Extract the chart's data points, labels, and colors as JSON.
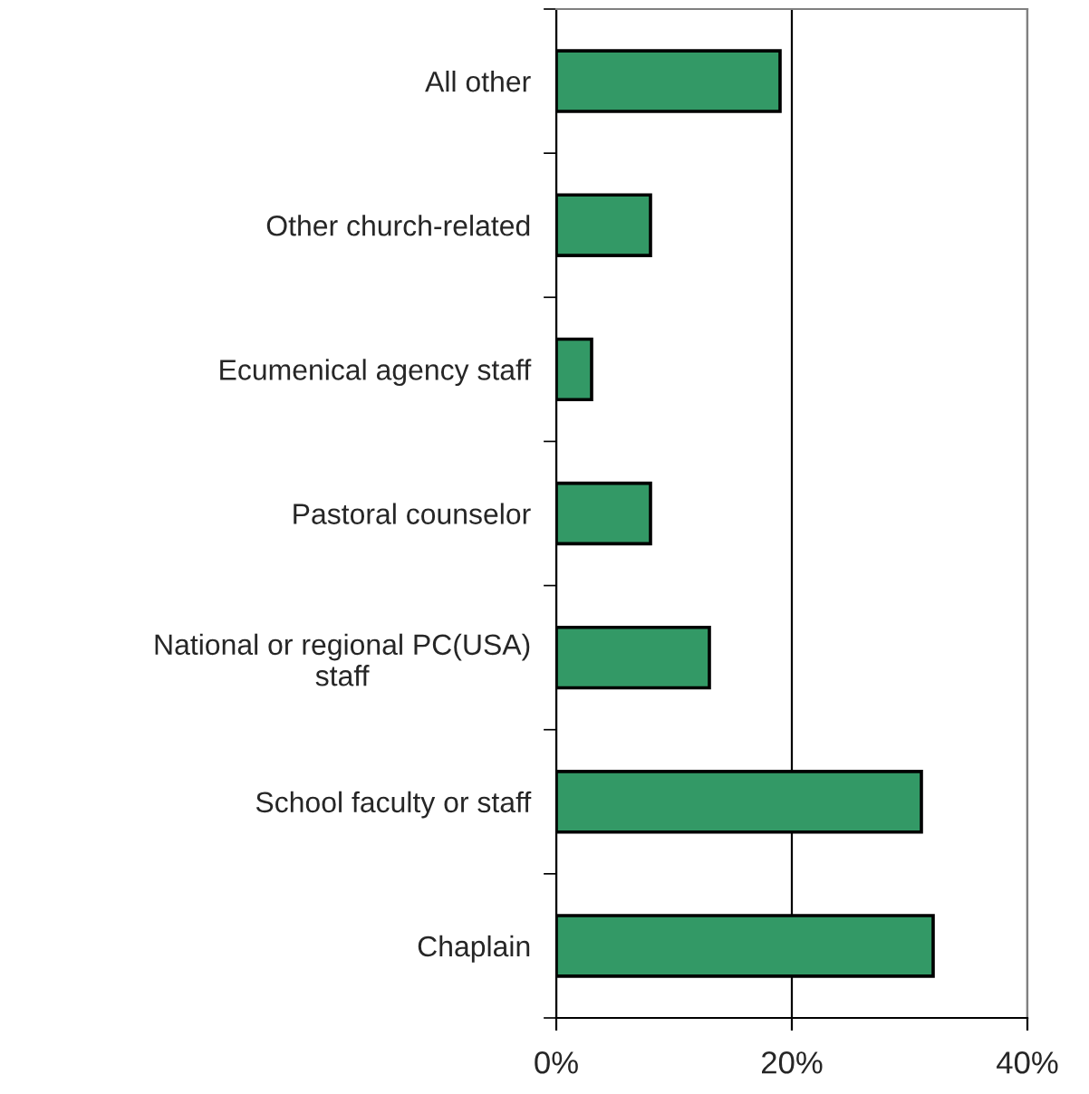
{
  "chart_data": {
    "type": "bar",
    "orientation": "horizontal",
    "categories": [
      "All other",
      "Other church-related",
      "Ecumenical agency staff",
      "Pastoral counselor",
      "National or regional PC(USA) staff",
      "School faculty or staff",
      "Chaplain"
    ],
    "values": [
      19,
      8,
      3,
      8,
      13,
      31,
      32
    ],
    "color": "#339966",
    "xlim": [
      0,
      40
    ],
    "xticks": [
      {
        "value": 0,
        "label": "0%"
      },
      {
        "value": 20,
        "label": "20%"
      },
      {
        "value": 40,
        "label": "40%"
      }
    ],
    "grid": "x"
  }
}
